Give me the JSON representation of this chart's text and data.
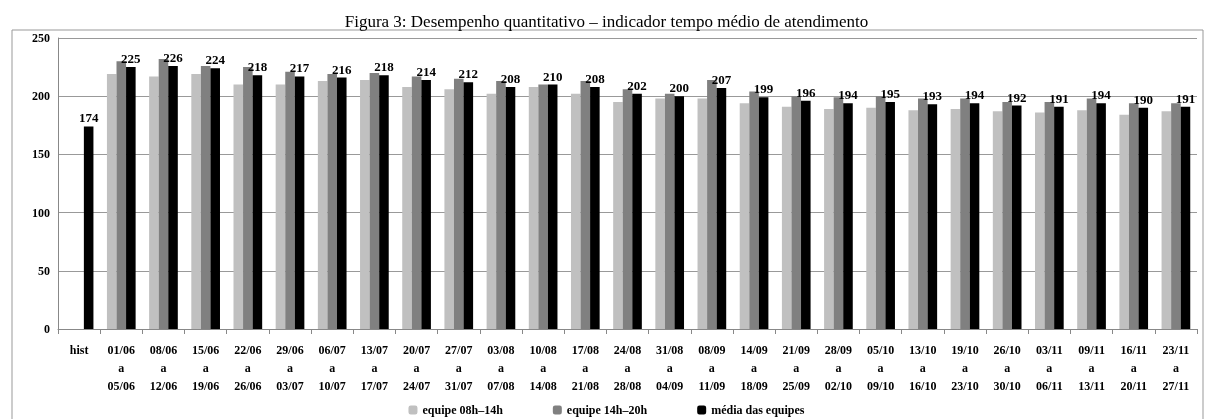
{
  "chart_data": {
    "type": "bar",
    "title": "Figura 3: Desempenho quantitativo – indicador tempo médio de atendimento",
    "categories": [
      "hist",
      "01/06\na\n05/06",
      "08/06\na\n12/06",
      "15/06\na\n19/06",
      "22/06\na\n26/06",
      "29/06\na\n03/07",
      "06/07\na\n10/07",
      "13/07\na\n17/07",
      "20/07\na\n24/07",
      "27/07\na\n31/07",
      "03/08\na\n07/08",
      "10/08\na\n14/08",
      "17/08\na\n21/08",
      "24/08\na\n28/08",
      "31/08\na\n04/09",
      "08/09\na\n11/09",
      "14/09\na\n18/09",
      "21/09\na\n25/09",
      "28/09\na\n02/10",
      "05/10\na\n09/10",
      "13/10\na\n16/10",
      "19/10\na\n23/10",
      "26/10\na\n30/10",
      "03/11\na\n06/11",
      "09/11\na\n13/11",
      "16/11\na\n20/11",
      "23/11\na\n27/11"
    ],
    "series": [
      {
        "name": "equipe 08h–14h",
        "color": "#c0c0c0",
        "values": [
          null,
          219,
          217,
          219,
          210,
          210,
          213,
          214,
          208,
          206,
          202,
          208,
          202,
          195,
          198,
          198,
          194,
          191,
          189,
          190,
          188,
          189,
          187,
          186,
          188,
          184,
          187
        ]
      },
      {
        "name": "equipe 14h–20h",
        "color": "#808080",
        "values": [
          null,
          230,
          232,
          226,
          225,
          221,
          219,
          220,
          217,
          215,
          213,
          210,
          213,
          206,
          202,
          214,
          204,
          200,
          199,
          200,
          198,
          198,
          195,
          195,
          198,
          194,
          194
        ]
      },
      {
        "name": "média das equipes",
        "color": "#000000",
        "values": [
          174,
          225,
          226,
          224,
          218,
          217,
          216,
          218,
          214,
          212,
          208,
          210,
          208,
          202,
          200,
          207,
          199,
          196,
          194,
          195,
          193,
          194,
          192,
          191,
          194,
          190,
          191
        ],
        "value_labels": [
          "174",
          "225",
          "226",
          "224",
          "218",
          "217",
          "216",
          "218",
          "214",
          "212",
          "208",
          "210",
          "208",
          "202",
          "200",
          "207",
          "199",
          "196",
          "194",
          "195",
          "193",
          "194",
          "192",
          "191",
          "194",
          "190",
          "191"
        ]
      }
    ],
    "ylim": [
      0,
      250
    ],
    "yticks": [
      0,
      50,
      100,
      150,
      200,
      250
    ],
    "grid": "y",
    "legend": "bottom"
  }
}
